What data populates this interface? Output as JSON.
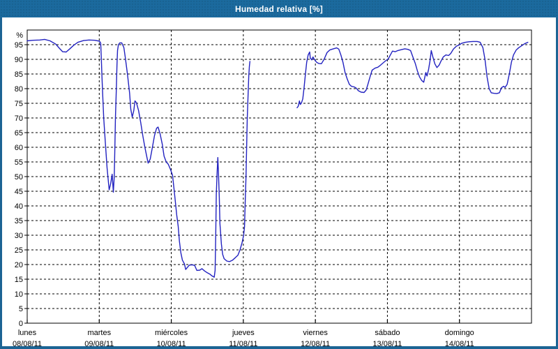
{
  "window": {
    "title": "Humedad relativa [%]"
  },
  "colors": {
    "titlebar_bg": "#1b6a9e",
    "frame": "#1c6494",
    "plot_bg": "#ffffff",
    "grid": "#000000",
    "axis": "#000000",
    "text": "#000000",
    "title_text": "#ffffff",
    "line": "#2222c0"
  },
  "chart_data": {
    "type": "line",
    "title": "Humedad relativa [%]",
    "ylabel": "%",
    "ylim": [
      0,
      100
    ],
    "xlim_hours": [
      0,
      168
    ],
    "grid": "dashed",
    "legend": "none",
    "y_ticks": [
      0,
      5,
      10,
      15,
      20,
      25,
      30,
      35,
      40,
      45,
      50,
      55,
      60,
      65,
      70,
      75,
      80,
      85,
      90,
      95
    ],
    "x_ticks": [
      {
        "hours": 0,
        "day": "lunes",
        "date": "08/08/11"
      },
      {
        "hours": 24,
        "day": "martes",
        "date": "09/08/11"
      },
      {
        "hours": 48,
        "day": "miércoles",
        "date": "10/08/11"
      },
      {
        "hours": 72,
        "day": "jueves",
        "date": "11/08/11"
      },
      {
        "hours": 96,
        "day": "viernes",
        "date": "12/08/11"
      },
      {
        "hours": 120,
        "day": "sábado",
        "date": "13/08/11"
      },
      {
        "hours": 144,
        "day": "domingo",
        "date": "14/08/11"
      }
    ],
    "series": [
      {
        "name": "Humedad relativa",
        "color": "#2222c0",
        "unit": "%",
        "segments": [
          [
            [
              0,
              96.3
            ],
            [
              1.9,
              96.5
            ],
            [
              4.2,
              96.6
            ],
            [
              5.8,
              96.8
            ],
            [
              7.6,
              96.3
            ],
            [
              9.5,
              95.2
            ],
            [
              10.7,
              93.8
            ],
            [
              11.8,
              92.6
            ],
            [
              13,
              92.5
            ],
            [
              14.1,
              93.5
            ],
            [
              15.5,
              94.8
            ],
            [
              16.9,
              95.8
            ],
            [
              18.8,
              96.4
            ],
            [
              20.6,
              96.6
            ],
            [
              22.5,
              96.5
            ],
            [
              24.1,
              96.2
            ],
            [
              24.5,
              95.5
            ],
            [
              24.7,
              90
            ],
            [
              24.9,
              84
            ],
            [
              25.2,
              77
            ],
            [
              25.5,
              70
            ],
            [
              26,
              62
            ],
            [
              26.6,
              53
            ],
            [
              27.3,
              45.5
            ],
            [
              27.8,
              47.5
            ],
            [
              28.3,
              50.8
            ],
            [
              28.7,
              44.7
            ],
            [
              29,
              50
            ],
            [
              29.2,
              60
            ],
            [
              29.4,
              70
            ],
            [
              29.7,
              80
            ],
            [
              29.9,
              88
            ],
            [
              30.1,
              93
            ],
            [
              30.4,
              95
            ],
            [
              30.8,
              95.6
            ],
            [
              31.5,
              95.6
            ],
            [
              32.2,
              94
            ],
            [
              32.7,
              90.5
            ],
            [
              33.4,
              85
            ],
            [
              34.1,
              78.5
            ],
            [
              34.5,
              73
            ],
            [
              35,
              70.3
            ],
            [
              35.5,
              72.5
            ],
            [
              35.9,
              75.8
            ],
            [
              36.4,
              75.2
            ],
            [
              37.1,
              72.5
            ],
            [
              37.8,
              68.5
            ],
            [
              38.5,
              64
            ],
            [
              39.2,
              60
            ],
            [
              39.9,
              56.5
            ],
            [
              40.3,
              54.6
            ],
            [
              41,
              56
            ],
            [
              41.7,
              60
            ],
            [
              42.4,
              64
            ],
            [
              43.1,
              66.5
            ],
            [
              43.6,
              66.9
            ],
            [
              44.3,
              64.5
            ],
            [
              45,
              61
            ],
            [
              45.6,
              57
            ],
            [
              46.3,
              55
            ],
            [
              47,
              54.2
            ],
            [
              47.7,
              52.5
            ],
            [
              48.4,
              50.5
            ],
            [
              48.9,
              46
            ],
            [
              49.4,
              41
            ],
            [
              49.8,
              37
            ],
            [
              50.3,
              33
            ],
            [
              50.7,
              28
            ],
            [
              51.2,
              24
            ],
            [
              51.7,
              21.5
            ],
            [
              52.4,
              20.2
            ],
            [
              52.8,
              18.3
            ],
            [
              54,
              19.8
            ],
            [
              55.1,
              19.9
            ],
            [
              55.8,
              19.7
            ],
            [
              56.5,
              18
            ],
            [
              57.5,
              18.1
            ],
            [
              58.2,
              18.6
            ],
            [
              59.1,
              17.8
            ],
            [
              60,
              17.2
            ],
            [
              60.9,
              16.7
            ],
            [
              61.6,
              16.1
            ],
            [
              62.3,
              15.7
            ],
            [
              62.6,
              18
            ],
            [
              62.8,
              30
            ],
            [
              63,
              44
            ],
            [
              63.3,
              52
            ],
            [
              63.5,
              56.5
            ],
            [
              63.7,
              52
            ],
            [
              64,
              43
            ],
            [
              64.2,
              34
            ],
            [
              64.7,
              27
            ],
            [
              65.1,
              23.5
            ],
            [
              65.6,
              22
            ],
            [
              66.5,
              21.2
            ],
            [
              67.4,
              21
            ],
            [
              68.4,
              21.5
            ],
            [
              69.3,
              22.3
            ],
            [
              70.2,
              23.2
            ],
            [
              70.9,
              25
            ],
            [
              71.6,
              27.5
            ],
            [
              72.1,
              30
            ],
            [
              72.4,
              33
            ],
            [
              72.6,
              40
            ],
            [
              72.9,
              50
            ],
            [
              73.1,
              60
            ],
            [
              73.3,
              70
            ],
            [
              73.6,
              78
            ],
            [
              73.8,
              84
            ],
            [
              74,
              87.5
            ],
            [
              74.2,
              89.3
            ]
          ],
          [
            [
              89.9,
              73.5
            ],
            [
              90.3,
              74
            ],
            [
              90.7,
              75.8
            ],
            [
              91,
              74.6
            ],
            [
              91.4,
              75.2
            ],
            [
              91.8,
              76.5
            ],
            [
              92.2,
              80
            ],
            [
              92.7,
              85
            ],
            [
              93.1,
              89
            ],
            [
              93.6,
              91.5
            ],
            [
              94.1,
              92.5
            ],
            [
              94.3,
              90.5
            ],
            [
              94.8,
              89.8
            ],
            [
              95.2,
              90.8
            ],
            [
              95.7,
              89.9
            ],
            [
              96.4,
              89
            ],
            [
              97.1,
              88.6
            ],
            [
              98,
              88.5
            ],
            [
              98.9,
              90
            ],
            [
              99.9,
              92.3
            ],
            [
              100.8,
              93.2
            ],
            [
              102,
              93.6
            ],
            [
              103.1,
              93.9
            ],
            [
              103.8,
              93.5
            ],
            [
              104.5,
              91.5
            ],
            [
              105.2,
              89
            ],
            [
              105.9,
              85.5
            ],
            [
              106.6,
              83.3
            ],
            [
              107.3,
              81.5
            ],
            [
              108,
              80.8
            ],
            [
              108.9,
              80.6
            ],
            [
              109.6,
              80.2
            ],
            [
              110.3,
              79.3
            ],
            [
              111.2,
              78.8
            ],
            [
              112.2,
              78.7
            ],
            [
              112.9,
              79.5
            ],
            [
              113.5,
              81.5
            ],
            [
              114.2,
              84
            ],
            [
              114.9,
              86.3
            ],
            [
              115.9,
              87
            ],
            [
              116.8,
              87.3
            ],
            [
              117.7,
              88
            ],
            [
              118.6,
              88.8
            ],
            [
              119.3,
              89.4
            ],
            [
              120.3,
              90.2
            ],
            [
              121,
              91.5
            ],
            [
              121.7,
              92.8
            ],
            [
              122.6,
              92.6
            ],
            [
              123.5,
              93
            ],
            [
              124.7,
              93.3
            ],
            [
              125.8,
              93.6
            ],
            [
              126.8,
              93.4
            ],
            [
              127.7,
              93
            ],
            [
              128.6,
              90.5
            ],
            [
              129.3,
              88.5
            ],
            [
              130,
              86
            ],
            [
              130.7,
              84
            ],
            [
              131.4,
              82.8
            ],
            [
              132.1,
              82.2
            ],
            [
              132.8,
              85.5
            ],
            [
              133.2,
              84.3
            ],
            [
              133.7,
              86.5
            ],
            [
              134.2,
              89.5
            ],
            [
              134.6,
              93
            ],
            [
              135.1,
              91
            ],
            [
              135.8,
              88.5
            ],
            [
              136.5,
              87.2
            ],
            [
              137.2,
              88
            ],
            [
              137.9,
              89.5
            ],
            [
              138.6,
              90.8
            ],
            [
              139.5,
              91.5
            ],
            [
              140.4,
              91.3
            ],
            [
              141.1,
              92
            ],
            [
              142,
              93.5
            ],
            [
              143,
              94.5
            ],
            [
              143.9,
              94.9
            ],
            [
              144.8,
              95.5
            ],
            [
              146,
              95.8
            ],
            [
              147.2,
              96
            ],
            [
              148.5,
              96.1
            ],
            [
              149.9,
              96.1
            ],
            [
              150.9,
              95.8
            ],
            [
              151.8,
              94
            ],
            [
              152.5,
              90
            ],
            [
              153.2,
              84
            ],
            [
              153.9,
              80
            ],
            [
              154.6,
              78.6
            ],
            [
              155.5,
              78.4
            ],
            [
              156.4,
              78.3
            ],
            [
              157.3,
              78.6
            ],
            [
              158,
              80.3
            ],
            [
              158.7,
              80.8
            ],
            [
              159.2,
              80.4
            ],
            [
              159.9,
              81.5
            ],
            [
              160.6,
              85
            ],
            [
              161.3,
              89
            ],
            [
              162,
              91.5
            ],
            [
              162.9,
              93.2
            ],
            [
              163.8,
              94
            ],
            [
              164.8,
              94.7
            ],
            [
              165.7,
              95.3
            ],
            [
              166.8,
              95.8
            ]
          ]
        ]
      }
    ]
  }
}
